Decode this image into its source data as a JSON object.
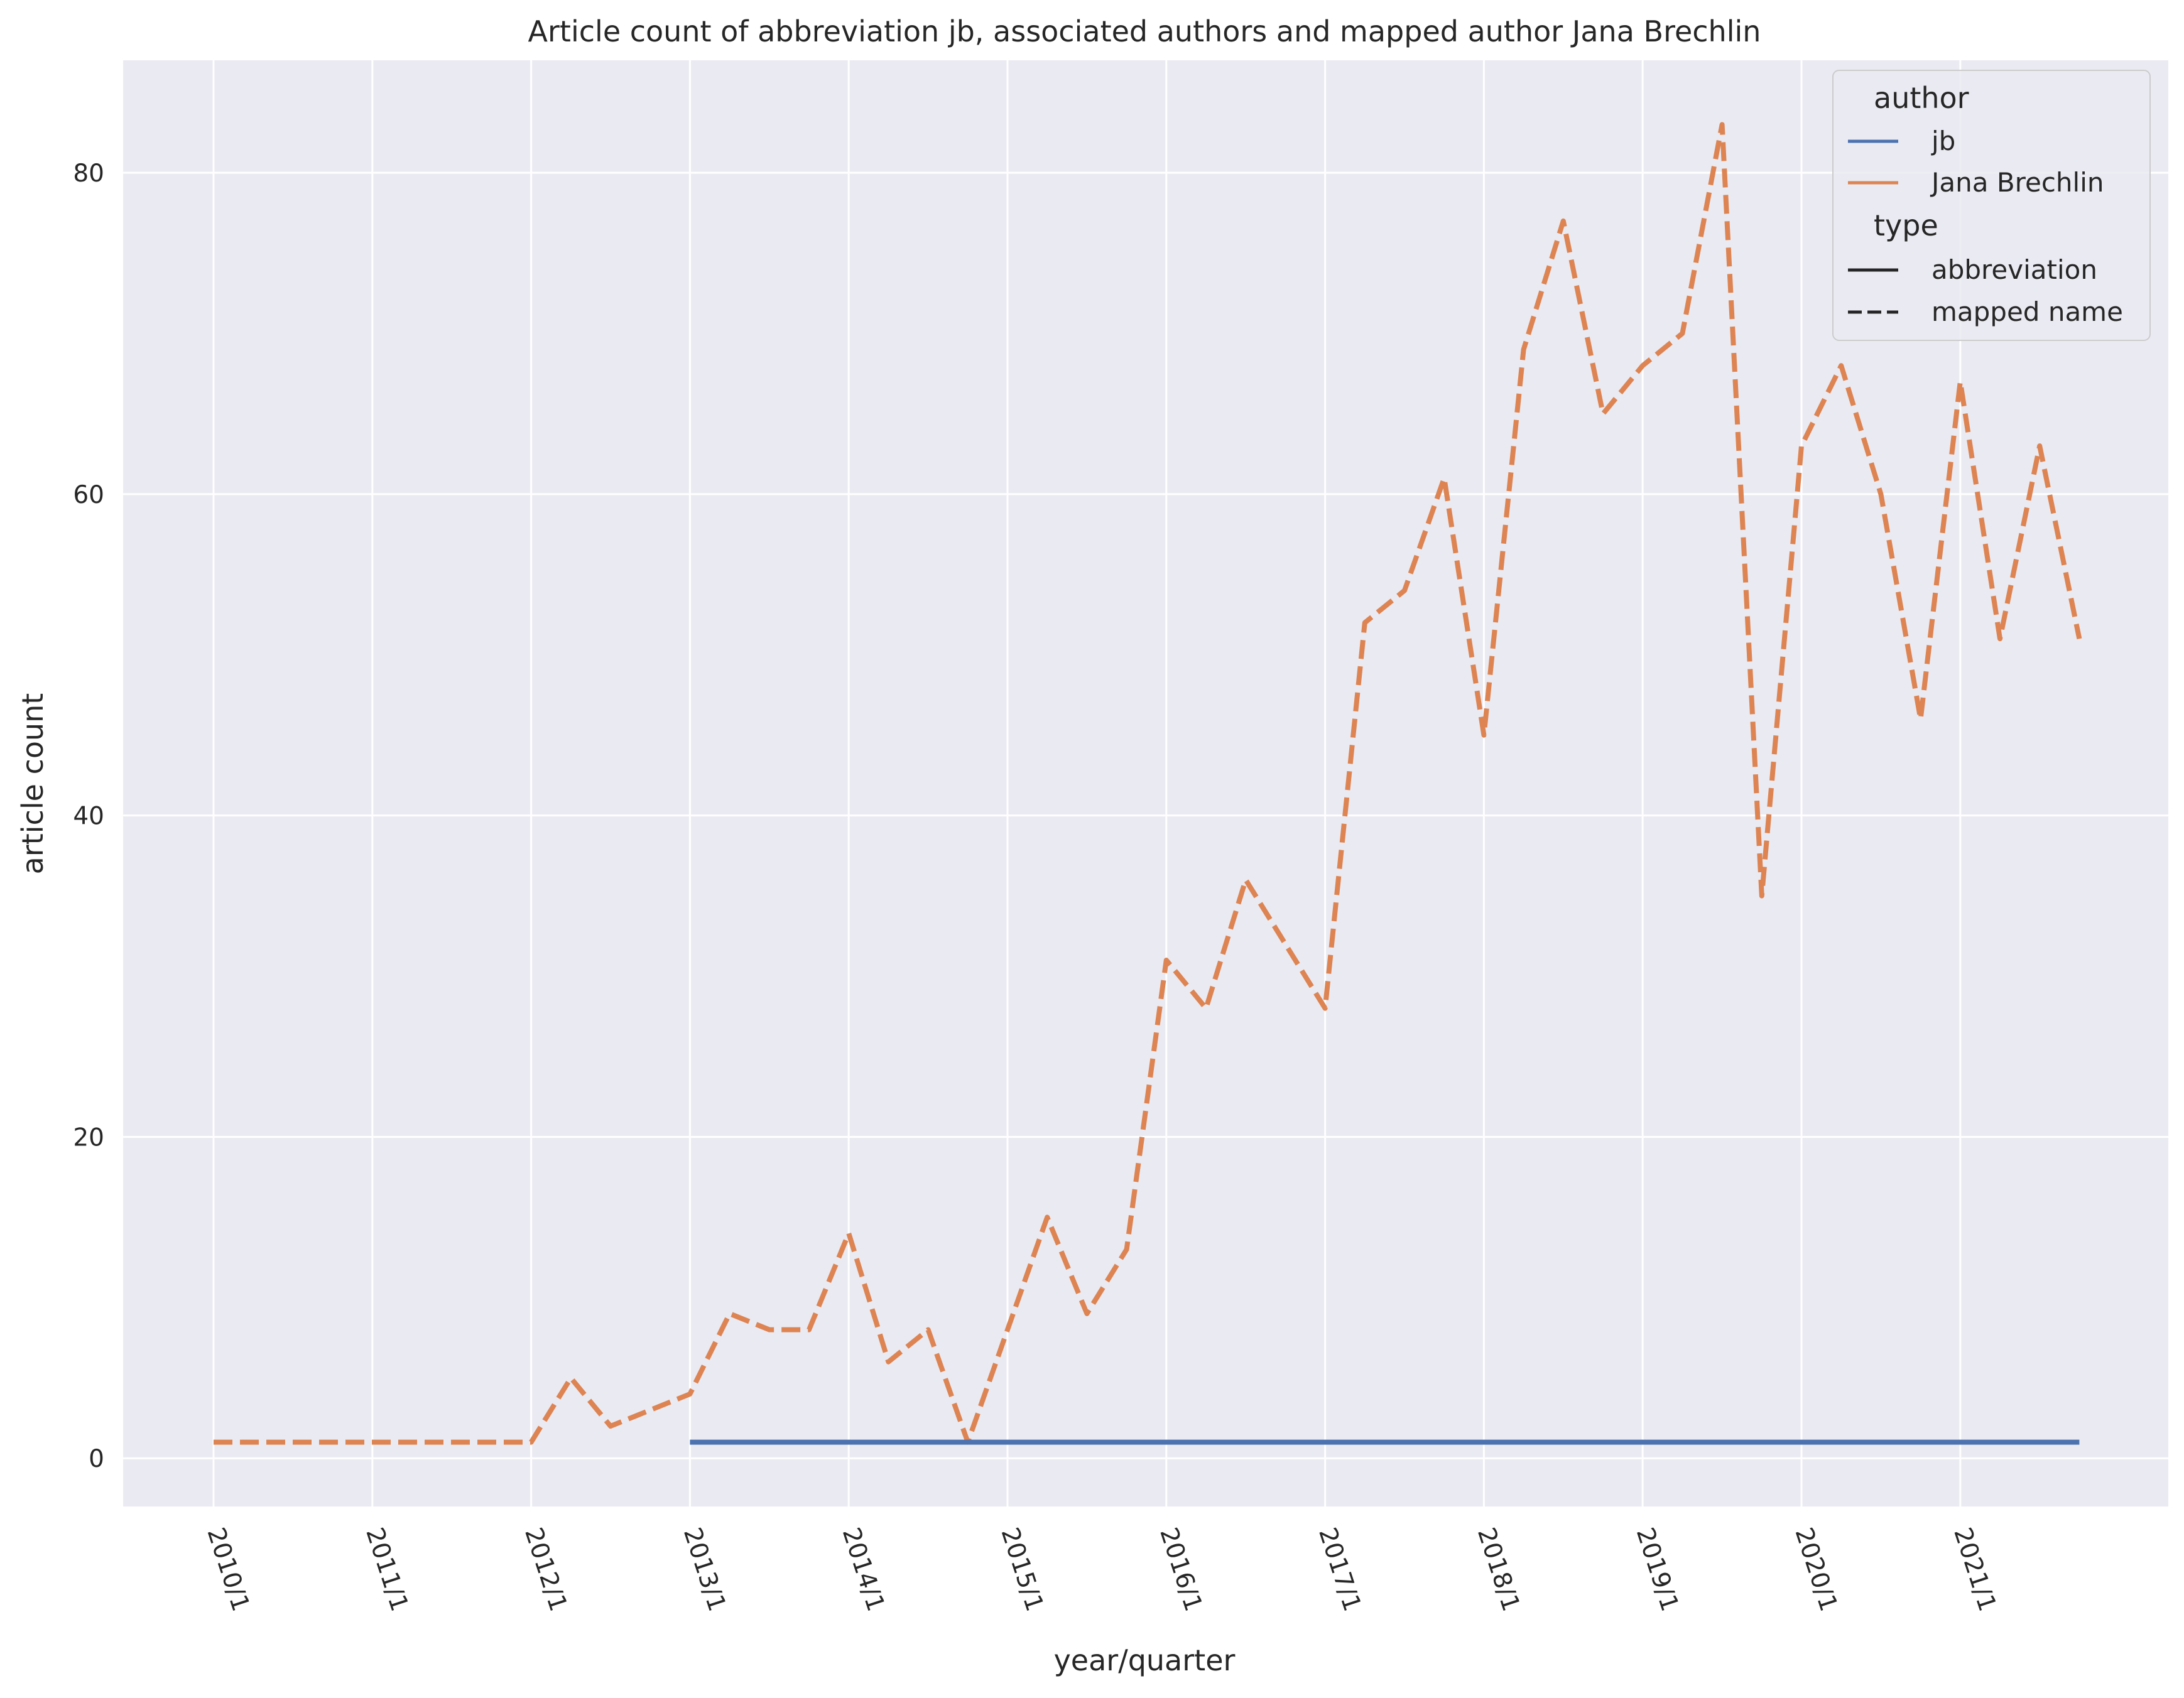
{
  "colors": {
    "background": "#eaeaf2",
    "grid": "#ffffff",
    "jb": "#4c72b0",
    "jana": "#dd8452",
    "text": "#262626"
  },
  "chart_data": {
    "type": "line",
    "title": "Article count of abbreviation jb, associated authors and mapped author Jana Brechlin",
    "xlabel": "year/quarter",
    "ylabel": "article count",
    "x_ticks": [
      "2010/1",
      "2011/1",
      "2012/1",
      "2013/1",
      "2014/1",
      "2015/1",
      "2016/1",
      "2017/1",
      "2018/1",
      "2019/1",
      "2020/1",
      "2021/1"
    ],
    "y_ticks": [
      0,
      20,
      40,
      60,
      80
    ],
    "ylim": [
      -3,
      87
    ],
    "x": [
      "2010/1",
      "2010/2",
      "2010/3",
      "2010/4",
      "2011/1",
      "2011/2",
      "2011/3",
      "2011/4",
      "2012/1",
      "2012/2",
      "2012/3",
      "2012/4",
      "2013/1",
      "2013/2",
      "2013/3",
      "2013/4",
      "2014/1",
      "2014/2",
      "2014/3",
      "2014/4",
      "2015/1",
      "2015/2",
      "2015/3",
      "2015/4",
      "2016/1",
      "2016/2",
      "2016/3",
      "2016/4",
      "2017/1",
      "2017/2",
      "2017/3",
      "2017/4",
      "2018/1",
      "2018/2",
      "2018/3",
      "2018/4",
      "2019/1",
      "2019/2",
      "2019/3",
      "2019/4",
      "2020/1",
      "2020/2",
      "2020/3",
      "2020/4",
      "2021/1",
      "2021/2",
      "2021/3",
      "2021/4"
    ],
    "grid": true,
    "legend": {
      "placement": "top-right",
      "author_title": "author",
      "type_title": "type",
      "authors": [
        {
          "label": "jb",
          "color_key": "jb"
        },
        {
          "label": "Jana Brechlin",
          "color_key": "jana"
        }
      ],
      "types": [
        {
          "label": "abbreviation",
          "style": "solid"
        },
        {
          "label": "mapped name",
          "style": "dashed"
        }
      ]
    },
    "series": [
      {
        "name": "Jana Brechlin",
        "type": "mapped name",
        "color_key": "jana",
        "dashed": true,
        "values": [
          1,
          1,
          1,
          1,
          1,
          1,
          1,
          1,
          1,
          5,
          2,
          3,
          4,
          9,
          8,
          8,
          14,
          6,
          8,
          1,
          8,
          15,
          9,
          13,
          31,
          28,
          36,
          32,
          28,
          52,
          54,
          61,
          45,
          69,
          77,
          65,
          68,
          70,
          83,
          35,
          63,
          68,
          60,
          46,
          67,
          51,
          63,
          51
        ]
      },
      {
        "name": "jb",
        "type": "abbreviation",
        "color_key": "jb",
        "dashed": false,
        "values": [
          null,
          null,
          null,
          null,
          null,
          null,
          null,
          null,
          null,
          null,
          null,
          null,
          1,
          1,
          1,
          1,
          1,
          1,
          1,
          1,
          1,
          1,
          1,
          1,
          1,
          1,
          1,
          1,
          1,
          1,
          1,
          1,
          1,
          1,
          1,
          1,
          1,
          1,
          1,
          1,
          1,
          1,
          1,
          1,
          1,
          1,
          1,
          1
        ]
      }
    ]
  }
}
